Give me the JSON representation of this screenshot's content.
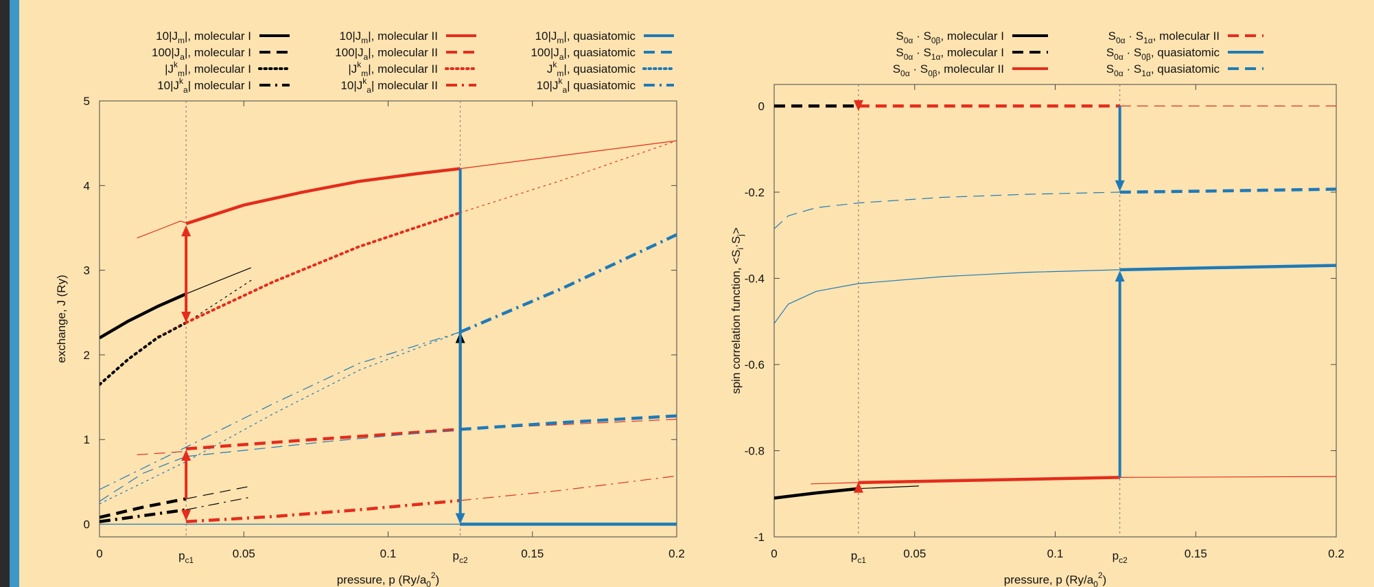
{
  "colors": {
    "black": "#000000",
    "red": "#e42c1c",
    "blue": "#1f7ab8",
    "background": "#fde3b0"
  },
  "chart_data": [
    {
      "type": "line",
      "xlabel": "pressure, p (Ry/a",
      "xlabel_sub": "0",
      "xlabel_sup": "2",
      "xlabel_end": ")",
      "ylabel": "exchange, J (Ry)",
      "xlim": [
        0,
        0.2
      ],
      "ylim": [
        -0.15,
        5
      ],
      "x_ticks": [
        {
          "value": 0,
          "label": "0"
        },
        {
          "value": 0.05,
          "label": "0.05"
        },
        {
          "value": 0.1,
          "label": "0.1"
        },
        {
          "value": 0.15,
          "label": "0.15"
        },
        {
          "value": 0.2,
          "label": "0.2"
        }
      ],
      "x_special_ticks": [
        {
          "value": 0.03,
          "main": "p",
          "sub": "c1"
        },
        {
          "value": 0.125,
          "main": "p",
          "sub": "c2"
        }
      ],
      "y_ticks": [
        0,
        1,
        2,
        3,
        4,
        5
      ],
      "legend": "top, four columns of entries",
      "legend_entries": [
        {
          "col": 0,
          "row": 0,
          "pre": "10|J",
          "sub": "m",
          "post": "|, molecular I",
          "color": "black",
          "dash": "solid"
        },
        {
          "col": 0,
          "row": 1,
          "pre": "100|J",
          "sub": "a",
          "post": "|, molecular I",
          "color": "black",
          "dash": "dashed"
        },
        {
          "col": 0,
          "row": 2,
          "pre": "|J",
          "sup": "k",
          "sub": "m",
          "post": "|, molecular I",
          "color": "black",
          "dash": "dotted"
        },
        {
          "col": 0,
          "row": 3,
          "pre": "10|J",
          "sup": "k",
          "sub": "a",
          "post": "| molecular I",
          "color": "black",
          "dash": "dashdot"
        },
        {
          "col": 1,
          "row": 0,
          "pre": "10|J",
          "sub": "m",
          "post": "|, molecular II",
          "color": "red",
          "dash": "solid"
        },
        {
          "col": 1,
          "row": 1,
          "pre": "100|J",
          "sub": "a",
          "post": "|, molecular II",
          "color": "red",
          "dash": "dashed"
        },
        {
          "col": 1,
          "row": 2,
          "pre": "|J",
          "sup": "k",
          "sub": "m",
          "post": "|, molecular II",
          "color": "red",
          "dash": "dotted"
        },
        {
          "col": 1,
          "row": 3,
          "pre": "10|J",
          "sup": "k",
          "sub": "a",
          "post": "| molecular II",
          "color": "red",
          "dash": "dashdot"
        },
        {
          "col": 2,
          "row": 0,
          "pre": "10|J",
          "sub": "m",
          "post": "|, quasiatomic",
          "color": "blue",
          "dash": "solid"
        },
        {
          "col": 2,
          "row": 1,
          "pre": "100|J",
          "sub": "a",
          "post": "|, quasiatomic",
          "color": "blue",
          "dash": "dashed"
        },
        {
          "col": 2,
          "row": 2,
          "pre": "J",
          "sup": "k",
          "sub": "m",
          "post": "|, quasiatomic",
          "color": "blue",
          "dash": "dotted"
        },
        {
          "col": 2,
          "row": 3,
          "pre": "10|J",
          "sup": "k",
          "sub": "a",
          "post": "| quasiatomic",
          "color": "blue",
          "dash": "dashdot"
        }
      ],
      "series": [
        {
          "color": "black",
          "dash": "solid",
          "width": 4.5,
          "x": [
            0,
            0.01,
            0.02,
            0.03
          ],
          "y": [
            2.2,
            2.4,
            2.57,
            2.72
          ]
        },
        {
          "color": "black",
          "dash": "solid",
          "width": 1.2,
          "x": [
            0.03,
            0.04,
            0.0525
          ],
          "y": [
            2.72,
            2.86,
            3.03
          ]
        },
        {
          "color": "black",
          "dash": "dotted",
          "width": 4,
          "x": [
            0,
            0.01,
            0.02,
            0.03
          ],
          "y": [
            1.65,
            1.95,
            2.2,
            2.38
          ]
        },
        {
          "color": "black",
          "dash": "dotted",
          "width": 1.2,
          "x": [
            0.03,
            0.04,
            0.0525
          ],
          "y": [
            2.38,
            2.6,
            2.88
          ]
        },
        {
          "color": "black",
          "dash": "dashed",
          "width": 4.5,
          "x": [
            0,
            0.015,
            0.03
          ],
          "y": [
            0.08,
            0.2,
            0.3
          ]
        },
        {
          "color": "black",
          "dash": "dashed",
          "width": 1.2,
          "x": [
            0.03,
            0.0525
          ],
          "y": [
            0.3,
            0.45
          ]
        },
        {
          "color": "black",
          "dash": "dashdot",
          "width": 4.5,
          "x": [
            0,
            0.015,
            0.03
          ],
          "y": [
            0.03,
            0.1,
            0.17
          ]
        },
        {
          "color": "black",
          "dash": "dashdot",
          "width": 1.2,
          "x": [
            0.03,
            0.0525
          ],
          "y": [
            0.17,
            0.32
          ]
        },
        {
          "color": "red",
          "dash": "solid",
          "width": 1.2,
          "x": [
            0.013,
            0.022,
            0.028,
            0.03
          ],
          "y": [
            3.38,
            3.5,
            3.58,
            3.56
          ]
        },
        {
          "color": "red",
          "dash": "solid",
          "width": 4.5,
          "x": [
            0.03,
            0.05,
            0.07,
            0.09,
            0.11,
            0.125
          ],
          "y": [
            3.55,
            3.77,
            3.92,
            4.05,
            4.14,
            4.2
          ]
        },
        {
          "color": "red",
          "dash": "solid",
          "width": 1.2,
          "x": [
            0.125,
            0.15,
            0.175,
            0.2
          ],
          "y": [
            4.2,
            4.31,
            4.42,
            4.53
          ]
        },
        {
          "color": "red",
          "dash": "dotted",
          "width": 4,
          "x": [
            0.03,
            0.06,
            0.09,
            0.125
          ],
          "y": [
            2.38,
            2.86,
            3.28,
            3.68
          ]
        },
        {
          "color": "red",
          "dash": "dotted",
          "width": 1.2,
          "x": [
            0.02,
            0.03
          ],
          "y": [
            2.22,
            2.38
          ]
        },
        {
          "color": "red",
          "dash": "dotted",
          "width": 1.2,
          "x": [
            0.125,
            0.16,
            0.2
          ],
          "y": [
            3.68,
            4.06,
            4.53
          ]
        },
        {
          "color": "red",
          "dash": "dashed",
          "width": 1.2,
          "x": [
            0.013,
            0.03
          ],
          "y": [
            0.82,
            0.86
          ]
        },
        {
          "color": "red",
          "dash": "dashed",
          "width": 4.5,
          "x": [
            0.03,
            0.07,
            0.125
          ],
          "y": [
            0.89,
            0.99,
            1.12
          ]
        },
        {
          "color": "red",
          "dash": "dashed",
          "width": 1.2,
          "x": [
            0.125,
            0.2
          ],
          "y": [
            1.12,
            1.24
          ]
        },
        {
          "color": "red",
          "dash": "dashdot",
          "width": 4.5,
          "x": [
            0.03,
            0.06,
            0.09,
            0.125
          ],
          "y": [
            0.03,
            0.09,
            0.17,
            0.28
          ]
        },
        {
          "color": "red",
          "dash": "dashdot",
          "width": 1.2,
          "x": [
            0.125,
            0.16,
            0.2
          ],
          "y": [
            0.28,
            0.4,
            0.57
          ]
        },
        {
          "color": "blue",
          "dash": "solid",
          "width": 1.2,
          "x": [
            0,
            0.125
          ],
          "y": [
            0,
            0
          ]
        },
        {
          "color": "blue",
          "dash": "solid",
          "width": 4.5,
          "x": [
            0.125,
            0.2
          ],
          "y": [
            0,
            0
          ]
        },
        {
          "color": "blue",
          "dash": "dotted",
          "width": 1.2,
          "x": [
            0,
            0.03,
            0.06,
            0.09,
            0.125
          ],
          "y": [
            0.24,
            0.74,
            1.3,
            1.82,
            2.27
          ]
        },
        {
          "color": "blue",
          "dash": "dashdot",
          "width": 1.2,
          "x": [
            0,
            0.03,
            0.06,
            0.09,
            0.125
          ],
          "y": [
            0.41,
            0.91,
            1.42,
            1.9,
            2.27
          ]
        },
        {
          "color": "blue",
          "dash": "dashdot",
          "width": 4.5,
          "x": [
            0.125,
            0.16,
            0.2
          ],
          "y": [
            2.27,
            2.78,
            3.42
          ]
        },
        {
          "color": "blue",
          "dash": "dashed",
          "width": 1.2,
          "x": [
            0,
            0.015,
            0.03
          ],
          "y": [
            0.27,
            0.6,
            0.8
          ]
        },
        {
          "color": "blue",
          "dash": "dashed",
          "width": 1.2,
          "x": [
            0.03,
            0.08,
            0.125
          ],
          "y": [
            0.8,
            0.98,
            1.12
          ]
        },
        {
          "color": "blue",
          "dash": "dashed",
          "width": 4.5,
          "x": [
            0.125,
            0.16,
            0.2
          ],
          "y": [
            1.12,
            1.2,
            1.28
          ]
        }
      ],
      "arrows": [
        {
          "color": "red",
          "x": 0.03,
          "from": 2.72,
          "to": 3.53
        },
        {
          "color": "red",
          "x": 0.03,
          "from": 2.72,
          "to": 2.38
        },
        {
          "color": "red",
          "x": 0.03,
          "from": 0.3,
          "to": 0.88
        },
        {
          "color": "red",
          "x": 0.03,
          "from": 0.17,
          "to": 0.04
        },
        {
          "color": "black",
          "x": 0.125,
          "from": 0.28,
          "to": 2.27
        },
        {
          "color": "blue",
          "x": 0.125,
          "from": 4.2,
          "to": 0.0
        }
      ],
      "vlines": [
        0.03,
        0.125
      ]
    },
    {
      "type": "line",
      "xlabel": "pressure, p (Ry/a",
      "xlabel_sub": "0",
      "xlabel_sup": "2",
      "xlabel_end": ")",
      "ylabel": "spin correlation function, <S",
      "ylabel_sub1": "i",
      "ylabel_mid": "·S",
      "ylabel_sub2": "j",
      "ylabel_end": ">",
      "xlim": [
        0,
        0.2
      ],
      "ylim": [
        -1,
        0.05
      ],
      "x_ticks": [
        {
          "value": 0,
          "label": "0"
        },
        {
          "value": 0.05,
          "label": "0.05"
        },
        {
          "value": 0.1,
          "label": "0.1"
        },
        {
          "value": 0.15,
          "label": "0.15"
        },
        {
          "value": 0.2,
          "label": "0.2"
        }
      ],
      "x_special_ticks": [
        {
          "value": 0.03,
          "main": "p",
          "sub": "c1"
        },
        {
          "value": 0.123,
          "main": "p",
          "sub": "c2"
        }
      ],
      "y_ticks": [
        {
          "value": 0,
          "label": "0"
        },
        {
          "value": -0.2,
          "label": "-0.2"
        },
        {
          "value": -0.4,
          "label": "-0.4"
        },
        {
          "value": -0.6,
          "label": "-0.6"
        },
        {
          "value": -0.8,
          "label": "-0.8"
        },
        {
          "value": -1,
          "label": "-1"
        }
      ],
      "legend": "top, two columns of entries",
      "legend_entries": [
        {
          "col": 0,
          "row": 0,
          "a": "S",
          "as": "0α",
          "b": "S",
          "bs": "0β",
          "post": ", molecular I",
          "color": "black",
          "dash": "solid"
        },
        {
          "col": 0,
          "row": 1,
          "a": "S",
          "as": "0α",
          "b": "S",
          "bs": "1α",
          "post": ", molecular I",
          "color": "black",
          "dash": "dashed"
        },
        {
          "col": 0,
          "row": 2,
          "a": "S",
          "as": "0α",
          "b": "S",
          "bs": "0β",
          "post": ", molecular II",
          "color": "red",
          "dash": "solid"
        },
        {
          "col": 1,
          "row": 0,
          "a": "S",
          "as": "0α",
          "b": "S",
          "bs": "1α",
          "post": ", molecular II",
          "color": "red",
          "dash": "dashed"
        },
        {
          "col": 1,
          "row": 1,
          "a": "S",
          "as": "0α",
          "b": "S",
          "bs": "0β",
          "post": ", quasiatomic",
          "color": "blue",
          "dash": "solid"
        },
        {
          "col": 1,
          "row": 2,
          "a": "S",
          "as": "0α",
          "b": "S",
          "bs": "1α",
          "post": ", quasiatomic",
          "color": "blue",
          "dash": "dashed"
        }
      ],
      "series": [
        {
          "color": "black",
          "dash": "solid",
          "width": 4.5,
          "x": [
            0,
            0.015,
            0.03
          ],
          "y": [
            -0.91,
            -0.898,
            -0.888
          ]
        },
        {
          "color": "black",
          "dash": "solid",
          "width": 1.2,
          "x": [
            0.03,
            0.0515
          ],
          "y": [
            -0.888,
            -0.882
          ]
        },
        {
          "color": "black",
          "dash": "dashed",
          "width": 4.5,
          "x": [
            0,
            0.03
          ],
          "y": [
            0,
            0
          ]
        },
        {
          "color": "red",
          "dash": "solid",
          "width": 1.2,
          "x": [
            0.013,
            0.03
          ],
          "y": [
            -0.877,
            -0.874
          ]
        },
        {
          "color": "red",
          "dash": "solid",
          "width": 4.5,
          "x": [
            0.03,
            0.123
          ],
          "y": [
            -0.874,
            -0.862
          ]
        },
        {
          "color": "red",
          "dash": "solid",
          "width": 1.2,
          "x": [
            0.123,
            0.2
          ],
          "y": [
            -0.862,
            -0.86
          ]
        },
        {
          "color": "red",
          "dash": "dashed",
          "width": 4.5,
          "x": [
            0.03,
            0.123
          ],
          "y": [
            0,
            0
          ]
        },
        {
          "color": "red",
          "dash": "dashed",
          "width": 1.2,
          "x": [
            0.123,
            0.2
          ],
          "y": [
            0,
            0
          ]
        },
        {
          "color": "blue",
          "dash": "solid",
          "width": 1.2,
          "x": [
            0,
            0.005,
            0.015,
            0.03,
            0.06,
            0.09,
            0.123
          ],
          "y": [
            -0.505,
            -0.46,
            -0.43,
            -0.412,
            -0.396,
            -0.386,
            -0.38
          ]
        },
        {
          "color": "blue",
          "dash": "solid",
          "width": 4.5,
          "x": [
            0.123,
            0.16,
            0.2
          ],
          "y": [
            -0.38,
            -0.375,
            -0.37
          ]
        },
        {
          "color": "blue",
          "dash": "dashed",
          "width": 1.2,
          "x": [
            0,
            0.005,
            0.015,
            0.03,
            0.06,
            0.09,
            0.123
          ],
          "y": [
            -0.285,
            -0.255,
            -0.236,
            -0.225,
            -0.212,
            -0.205,
            -0.2
          ]
        },
        {
          "color": "blue",
          "dash": "dashed",
          "width": 4.5,
          "x": [
            0.123,
            0.16,
            0.2
          ],
          "y": [
            -0.2,
            -0.197,
            -0.193
          ]
        }
      ],
      "arrows": [
        {
          "color": "red",
          "x": 0.03,
          "from": -0.888,
          "to": -0.872
        },
        {
          "color": "red",
          "x": 0.03,
          "from": 0,
          "to": -0.012
        },
        {
          "color": "blue",
          "x": 0.123,
          "from": -0.862,
          "to": -0.382
        },
        {
          "color": "blue",
          "x": 0.123,
          "from": 0,
          "to": -0.198
        }
      ],
      "vlines": [
        0.03,
        0.123
      ]
    }
  ]
}
